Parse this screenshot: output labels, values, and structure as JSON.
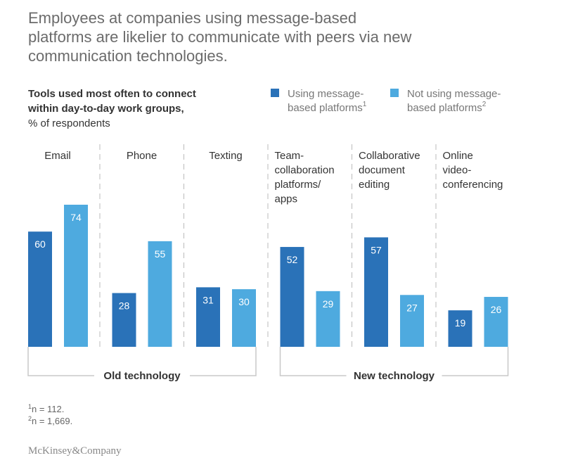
{
  "title_lines": [
    "Employees at companies using message-based",
    "platforms are likelier to communicate with peers via new",
    "communication technologies."
  ],
  "chart_data": {
    "type": "bar",
    "subtitle_lines": [
      "Tools used most often to connect",
      "within day-to-day work groups,"
    ],
    "unit": "% of respondents",
    "categories": [
      [
        "Email"
      ],
      [
        "Phone"
      ],
      [
        "Texting"
      ],
      [
        "Team-",
        "collaboration",
        "platforms/",
        "apps"
      ],
      [
        "Collaborative",
        "document",
        "editing"
      ],
      [
        "Online",
        "video-",
        "conferencing"
      ]
    ],
    "series": [
      {
        "name_lines": [
          "Using message-",
          "based platforms"
        ],
        "sup": "1",
        "color": "#2a72b8",
        "values": [
          60,
          28,
          31,
          52,
          57,
          19
        ]
      },
      {
        "name_lines": [
          "Not using message-",
          "based platforms"
        ],
        "sup": "2",
        "color": "#4eaadf",
        "values": [
          74,
          55,
          30,
          29,
          27,
          26
        ]
      }
    ],
    "groups": [
      {
        "label": "Old technology",
        "categories": [
          0,
          1,
          2
        ]
      },
      {
        "label": "New technology",
        "categories": [
          3,
          4,
          5
        ]
      }
    ],
    "ylim": [
      0,
      80
    ],
    "grid": false,
    "legend": "top-right"
  },
  "footnotes": [
    {
      "sup": "1",
      "text": "n = 112."
    },
    {
      "sup": "2",
      "text": "n = 1,669."
    }
  ],
  "logo": "McKinsey&Company"
}
